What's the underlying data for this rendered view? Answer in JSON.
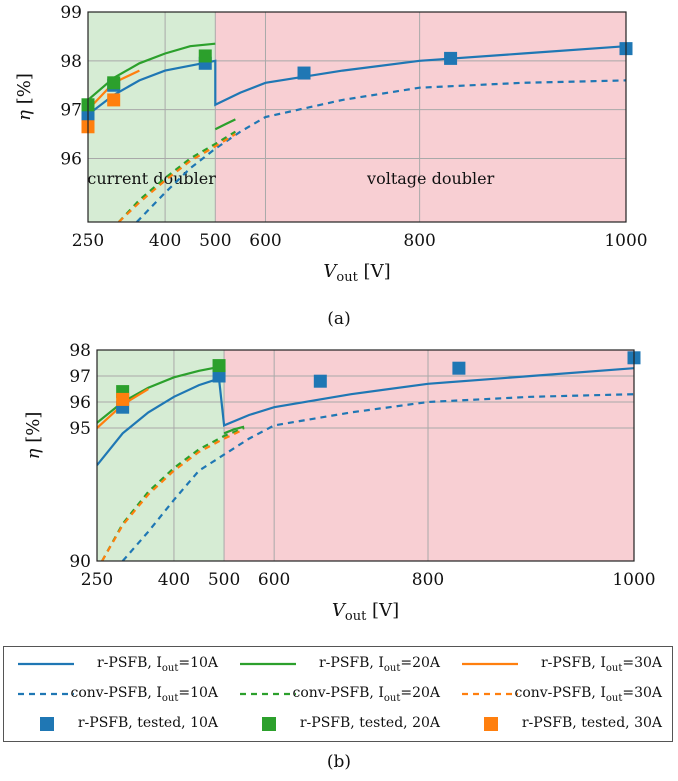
{
  "colors": {
    "blue": "#1f77b4",
    "green": "#2ca02c",
    "orange": "#ff7f0e",
    "region_left": "#d6ecd4",
    "region_right": "#f8cfd3",
    "grid": "#a9a9a9"
  },
  "chart_data": [
    {
      "type": "line",
      "panel": "(a)",
      "xlabel": "V_out [V]",
      "ylabel": "η [%]",
      "xticks": [
        250,
        400,
        500,
        600,
        800,
        1000
      ],
      "yticks": [
        96,
        97,
        98,
        99
      ],
      "xlim": [
        250,
        1000
      ],
      "ylim": [
        94.7,
        99
      ],
      "regions": [
        {
          "label": "current doubler",
          "x": [
            250,
            500
          ]
        },
        {
          "label": "voltage doubler",
          "x": [
            500,
            1000
          ]
        }
      ],
      "series": [
        {
          "name": "r-PSFB, Iout=10A",
          "color": "blue",
          "dash": false,
          "x": [
            250,
            300,
            350,
            400,
            450,
            500,
            500,
            550,
            600,
            700,
            800,
            900,
            1000
          ],
          "y": [
            96.9,
            97.3,
            97.6,
            97.8,
            97.9,
            98.0,
            97.1,
            97.35,
            97.55,
            97.8,
            98.0,
            98.15,
            98.3
          ]
        },
        {
          "name": "r-PSFB, Iout=20A",
          "color": "green",
          "dash": false,
          "x": [
            250,
            300,
            350,
            400,
            450,
            500
          ],
          "y": [
            97.2,
            97.65,
            97.95,
            98.15,
            98.3,
            98.35
          ]
        },
        {
          "name": "r-PSFB, Iout=20A (voltage doubler)",
          "color": "green",
          "dash": false,
          "x": [
            500,
            520,
            540
          ],
          "y": [
            96.6,
            96.7,
            96.8
          ]
        },
        {
          "name": "r-PSFB, Iout=30A",
          "color": "orange",
          "dash": false,
          "x": [
            250,
            300,
            350
          ],
          "y": [
            97.0,
            97.55,
            97.8
          ]
        },
        {
          "name": "conv-PSFB, Iout=10A",
          "color": "blue",
          "dash": true,
          "x": [
            345,
            400,
            450,
            500,
            550,
            600,
            700,
            800,
            900,
            1000
          ],
          "y": [
            94.7,
            95.3,
            95.8,
            96.2,
            96.55,
            96.85,
            97.2,
            97.45,
            97.55,
            97.6
          ]
        },
        {
          "name": "conv-PSFB, Iout=20A",
          "color": "green",
          "dash": true,
          "x": [
            310,
            350,
            400,
            450,
            500,
            540
          ],
          "y": [
            94.7,
            95.15,
            95.6,
            96.0,
            96.3,
            96.55
          ]
        },
        {
          "name": "conv-PSFB, Iout=30A",
          "color": "orange",
          "dash": true,
          "x": [
            310,
            350,
            400,
            450,
            500,
            540
          ],
          "y": [
            94.7,
            95.1,
            95.55,
            95.95,
            96.25,
            96.5
          ]
        }
      ],
      "tested": [
        {
          "name": "r-PSFB, tested, 10A",
          "color": "blue",
          "x": [
            250,
            300,
            480,
            650,
            830,
            1000
          ],
          "y": [
            96.85,
            97.5,
            97.95,
            97.75,
            98.05,
            98.25
          ]
        },
        {
          "name": "r-PSFB, tested, 20A",
          "color": "green",
          "x": [
            250,
            300,
            480
          ],
          "y": [
            97.1,
            97.55,
            98.1
          ]
        },
        {
          "name": "r-PSFB, tested, 30A",
          "color": "orange",
          "x": [
            250,
            300
          ],
          "y": [
            96.65,
            97.2
          ]
        }
      ]
    },
    {
      "type": "line",
      "panel": "(b)",
      "xlabel": "V_out [V]",
      "ylabel": "η [%]",
      "xticks": [
        250,
        400,
        500,
        600,
        800,
        1000
      ],
      "yticks": [
        90,
        95,
        96,
        97,
        98
      ],
      "xlim": [
        250,
        1000
      ],
      "ylim": [
        90,
        98
      ],
      "regions": [
        {
          "label": "",
          "x": [
            250,
            500
          ]
        },
        {
          "label": "",
          "x": [
            500,
            1000
          ]
        }
      ],
      "series": [
        {
          "name": "r-PSFB, Iout=10A",
          "color": "blue",
          "dash": false,
          "x": [
            250,
            300,
            350,
            400,
            450,
            490,
            500,
            550,
            600,
            700,
            800,
            900,
            1000
          ],
          "y": [
            93.6,
            94.8,
            95.6,
            96.2,
            96.65,
            96.9,
            95.1,
            95.5,
            95.8,
            96.3,
            96.7,
            97.0,
            97.3
          ]
        },
        {
          "name": "r-PSFB, Iout=20A",
          "color": "green",
          "dash": false,
          "x": [
            250,
            300,
            350,
            400,
            450,
            490
          ],
          "y": [
            95.2,
            96.0,
            96.55,
            96.95,
            97.2,
            97.35
          ]
        },
        {
          "name": "r-PSFB, Iout=20A (voltage doubler)",
          "color": "green",
          "dash": false,
          "x": [
            500,
            520,
            540
          ],
          "y": [
            94.8,
            94.95,
            95.05
          ]
        },
        {
          "name": "r-PSFB, Iout=30A",
          "color": "orange",
          "dash": false,
          "x": [
            250,
            300,
            350
          ],
          "y": [
            95.0,
            95.9,
            96.5
          ]
        },
        {
          "name": "conv-PSFB, Iout=10A",
          "color": "blue",
          "dash": true,
          "x": [
            300,
            350,
            400,
            450,
            500,
            550,
            600,
            700,
            800,
            900,
            1000
          ],
          "y": [
            90.0,
            91.1,
            92.3,
            93.4,
            94.0,
            94.6,
            95.1,
            95.6,
            96.0,
            96.2,
            96.3
          ]
        },
        {
          "name": "conv-PSFB, Iout=20A",
          "color": "green",
          "dash": true,
          "x": [
            260,
            300,
            350,
            400,
            450,
            500,
            540
          ],
          "y": [
            90.0,
            91.4,
            92.6,
            93.5,
            94.2,
            94.7,
            95.0
          ]
        },
        {
          "name": "conv-PSFB, Iout=30A",
          "color": "orange",
          "dash": true,
          "x": [
            260,
            300,
            350,
            400,
            450,
            500,
            540
          ],
          "y": [
            90.0,
            91.35,
            92.5,
            93.4,
            94.1,
            94.6,
            94.95
          ]
        }
      ],
      "tested": [
        {
          "name": "r-PSFB, tested, 10A",
          "color": "blue",
          "x": [
            300,
            490,
            660,
            830,
            1000
          ],
          "y": [
            95.8,
            97.0,
            96.8,
            97.3,
            97.7
          ]
        },
        {
          "name": "r-PSFB, tested, 20A",
          "color": "green",
          "x": [
            300,
            490
          ],
          "y": [
            96.4,
            97.4
          ]
        },
        {
          "name": "r-PSFB, tested, 30A",
          "color": "orange",
          "x": [
            300
          ],
          "y": [
            96.1
          ]
        }
      ]
    }
  ],
  "legend": [
    {
      "prefix": "r-PSFB, I",
      "sub": "out",
      "suffix": "=10A",
      "color": "blue",
      "kind": "solid"
    },
    {
      "prefix": "r-PSFB, I",
      "sub": "out",
      "suffix": "=20A",
      "color": "green",
      "kind": "solid"
    },
    {
      "prefix": "r-PSFB, I",
      "sub": "out",
      "suffix": "=30A",
      "color": "orange",
      "kind": "solid"
    },
    {
      "prefix": "conv-PSFB, I",
      "sub": "out",
      "suffix": "=10A",
      "color": "blue",
      "kind": "dashed"
    },
    {
      "prefix": "conv-PSFB, I",
      "sub": "out",
      "suffix": "=20A",
      "color": "green",
      "kind": "dashed"
    },
    {
      "prefix": "conv-PSFB, I",
      "sub": "out",
      "suffix": "=30A",
      "color": "orange",
      "kind": "dashed"
    },
    {
      "prefix": "r-PSFB, tested, 10A",
      "sub": "",
      "suffix": "",
      "color": "blue",
      "kind": "marker"
    },
    {
      "prefix": "r-PSFB, tested, 20A",
      "sub": "",
      "suffix": "",
      "color": "green",
      "kind": "marker"
    },
    {
      "prefix": "r-PSFB, tested, 30A",
      "sub": "",
      "suffix": "",
      "color": "orange",
      "kind": "marker"
    }
  ],
  "captions": {
    "a": "(a)",
    "b": "(b)"
  }
}
